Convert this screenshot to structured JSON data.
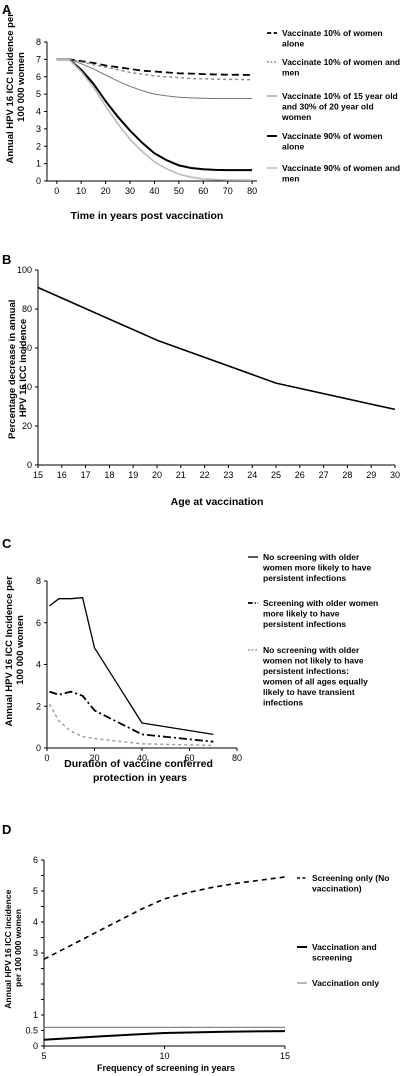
{
  "chart_data": [
    {
      "panel": "A",
      "type": "line",
      "xlabel": "Time in years post vaccination",
      "ylabel_lines": [
        "Annual HPV 16 ICC Incidence per",
        "100 000 women"
      ],
      "xlim": [
        -4,
        82
      ],
      "ylim": [
        0,
        8
      ],
      "xticks": [
        0,
        10,
        20,
        30,
        40,
        50,
        60,
        70,
        80
      ],
      "yticks": [
        0,
        1,
        2,
        3,
        4,
        5,
        6,
        7,
        8
      ],
      "grid": false,
      "legend_position": "right",
      "series": [
        {
          "name_lines": [
            "Vaccinate 10% of women",
            "alone"
          ],
          "color": "#000000",
          "width": 1.8,
          "dash": "7,4",
          "x": [
            0,
            5,
            10,
            15,
            20,
            25,
            30,
            35,
            40,
            45,
            50,
            55,
            60,
            65,
            70,
            75,
            80
          ],
          "y": [
            7.0,
            7.0,
            6.9,
            6.8,
            6.65,
            6.55,
            6.45,
            6.35,
            6.3,
            6.25,
            6.2,
            6.18,
            6.15,
            6.13,
            6.12,
            6.11,
            6.1
          ]
        },
        {
          "name_lines": [
            "Vaccinate 10% of women and",
            "men"
          ],
          "color": "#888888",
          "width": 1.4,
          "dash": "3,3",
          "x": [
            0,
            5,
            10,
            15,
            20,
            25,
            30,
            35,
            40,
            45,
            50,
            55,
            60,
            65,
            70,
            75,
            80
          ],
          "y": [
            7.0,
            7.0,
            6.85,
            6.7,
            6.55,
            6.4,
            6.25,
            6.15,
            6.05,
            6.0,
            5.95,
            5.9,
            5.88,
            5.86,
            5.85,
            5.84,
            5.83
          ]
        },
        {
          "name_lines": [
            "Vaccinate 10% of 15 year old",
            "and 30% of 20 year old",
            "women"
          ],
          "color": "#777777",
          "width": 1.0,
          "dash": "",
          "x": [
            0,
            5,
            10,
            15,
            20,
            25,
            30,
            35,
            40,
            45,
            50,
            55,
            60,
            65,
            70,
            75,
            80
          ],
          "y": [
            7.0,
            7.0,
            6.75,
            6.45,
            6.1,
            5.75,
            5.45,
            5.2,
            5.0,
            4.9,
            4.82,
            4.78,
            4.76,
            4.75,
            4.75,
            4.75,
            4.75
          ]
        },
        {
          "name_lines": [
            "Vaccinate 90% of women",
            "alone"
          ],
          "color": "#000000",
          "width": 2.0,
          "dash": "",
          "x": [
            0,
            5,
            10,
            15,
            20,
            25,
            30,
            35,
            40,
            45,
            50,
            55,
            60,
            65,
            70,
            75,
            80
          ],
          "y": [
            7.0,
            7.0,
            6.4,
            5.6,
            4.6,
            3.7,
            2.9,
            2.2,
            1.6,
            1.2,
            0.9,
            0.75,
            0.68,
            0.64,
            0.63,
            0.63,
            0.63
          ]
        },
        {
          "name_lines": [
            "Vaccinate 90% of women and",
            "men"
          ],
          "color": "#bbbbbb",
          "width": 1.6,
          "dash": "",
          "x": [
            0,
            5,
            10,
            15,
            20,
            25,
            30,
            35,
            40,
            45,
            50,
            55,
            60,
            65,
            70,
            75,
            80
          ],
          "y": [
            7.0,
            7.0,
            6.3,
            5.4,
            4.3,
            3.3,
            2.4,
            1.7,
            1.1,
            0.7,
            0.4,
            0.22,
            0.12,
            0.08,
            0.06,
            0.05,
            0.05
          ]
        }
      ]
    },
    {
      "panel": "B",
      "type": "line",
      "xlabel": "Age at vaccination",
      "ylabel_lines": [
        "Percentage decrease in annual",
        "HPV 16 ICC incidence"
      ],
      "xlim": [
        15,
        30
      ],
      "ylim": [
        0,
        100
      ],
      "xticks": [
        15,
        16,
        17,
        18,
        19,
        20,
        21,
        22,
        23,
        24,
        25,
        26,
        27,
        28,
        29,
        30
      ],
      "yticks": [
        0,
        20,
        40,
        60,
        80,
        100
      ],
      "grid": false,
      "series": [
        {
          "color": "#000000",
          "width": 1.6,
          "dash": "",
          "x": [
            15,
            20,
            25,
            30
          ],
          "y": [
            91,
            64,
            42,
            28.5
          ]
        }
      ]
    },
    {
      "panel": "C",
      "type": "line",
      "xlabel_lines": [
        "Duration of vaccine conferred",
        "protection in years"
      ],
      "ylabel_lines": [
        "Annual HPV 16 ICC Incidence per",
        "100 000 women"
      ],
      "xlim": [
        0,
        80
      ],
      "ylim": [
        0,
        8
      ],
      "xticks": [
        0,
        20,
        40,
        60,
        80
      ],
      "yticks": [
        0,
        2,
        4,
        6,
        8
      ],
      "grid": false,
      "legend_position": "right",
      "series": [
        {
          "name_lines": [
            "No screening with older",
            "women more likely to have",
            "persistent infections"
          ],
          "color": "#000000",
          "width": 1.3,
          "dash": "",
          "x": [
            1,
            5,
            10,
            15,
            20,
            40,
            70
          ],
          "y": [
            6.8,
            7.15,
            7.15,
            7.2,
            4.8,
            1.2,
            0.65
          ]
        },
        {
          "name_lines": [
            "Screening with older women",
            "more likely to have",
            "persistent infections"
          ],
          "color": "#000000",
          "width": 1.8,
          "dash": "8,3,2,3",
          "x": [
            1,
            5,
            10,
            15,
            20,
            40,
            70
          ],
          "y": [
            2.7,
            2.55,
            2.7,
            2.5,
            1.8,
            0.65,
            0.3
          ]
        },
        {
          "name_lines": [
            "No screening with older",
            "women not likely to have",
            "persistent infections:",
            "women of all ages equally",
            "likely to have transient",
            "infections"
          ],
          "color": "#999999",
          "width": 1.4,
          "dash": "3,3",
          "x": [
            1,
            5,
            10,
            15,
            20,
            40,
            70
          ],
          "y": [
            2.1,
            1.3,
            0.8,
            0.55,
            0.45,
            0.2,
            0.12
          ]
        }
      ]
    },
    {
      "panel": "D",
      "type": "line",
      "xlabel": "Frequency of screening in years",
      "ylabel_lines": [
        "Annual HPV 16 ICC incidence",
        "per 100 000 women"
      ],
      "xlim": [
        5,
        15
      ],
      "ylim": [
        0,
        6
      ],
      "xticks": [
        5,
        10,
        15
      ],
      "yticks": [
        0,
        0.5,
        1,
        1.5,
        2,
        2.5,
        3,
        3.5,
        4,
        4.5,
        5,
        5.5,
        6
      ],
      "ytick_labels": [
        "0",
        "0.5",
        "1",
        "",
        "",
        "",
        "3",
        "",
        "4",
        "",
        "5",
        "",
        "6"
      ],
      "grid": false,
      "legend_position": "right",
      "series": [
        {
          "name_lines": [
            "Screening only (No",
            "vaccination)"
          ],
          "color": "#000000",
          "width": 1.6,
          "dash": "5,4",
          "x": [
            5,
            6,
            7,
            8,
            9,
            10,
            11,
            12,
            13,
            14,
            15
          ],
          "y": [
            2.8,
            3.2,
            3.6,
            4.0,
            4.4,
            4.75,
            4.95,
            5.12,
            5.25,
            5.35,
            5.45
          ]
        },
        {
          "name_lines": [
            "Vaccination and",
            "screening"
          ],
          "color": "#000000",
          "width": 2.0,
          "dash": "",
          "x": [
            5,
            7.5,
            10,
            12.5,
            15
          ],
          "y": [
            0.2,
            0.32,
            0.42,
            0.46,
            0.48
          ]
        },
        {
          "name_lines": [
            "Vaccination only"
          ],
          "color": "#888888",
          "width": 1.2,
          "dash": "",
          "x": [
            5,
            15
          ],
          "y": [
            0.6,
            0.6
          ]
        }
      ]
    }
  ]
}
